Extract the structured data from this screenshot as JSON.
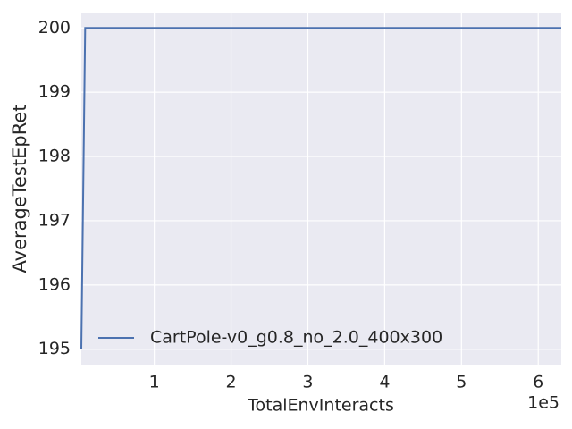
{
  "chart_data": {
    "type": "line",
    "xlabel": "TotalEnvInteracts",
    "ylabel": "AverageTestEpRet",
    "x_offset_label": "1e5",
    "x": [
      5000,
      10000,
      630000
    ],
    "series": [
      {
        "name": "CartPole-v0_g0.8_no_2.0_400x300",
        "color": "#4c72b0",
        "values": [
          195,
          200,
          200
        ]
      }
    ],
    "xlim": [
      5000,
      630000
    ],
    "xticks": [
      {
        "value": 100000,
        "label": "1"
      },
      {
        "value": 200000,
        "label": "2"
      },
      {
        "value": 300000,
        "label": "3"
      },
      {
        "value": 400000,
        "label": "4"
      },
      {
        "value": 500000,
        "label": "5"
      },
      {
        "value": 600000,
        "label": "6"
      }
    ],
    "ylim": [
      194.76,
      200.24
    ],
    "yticks": [
      195,
      196,
      197,
      198,
      199,
      200
    ],
    "grid": true,
    "legend": "lower left"
  }
}
